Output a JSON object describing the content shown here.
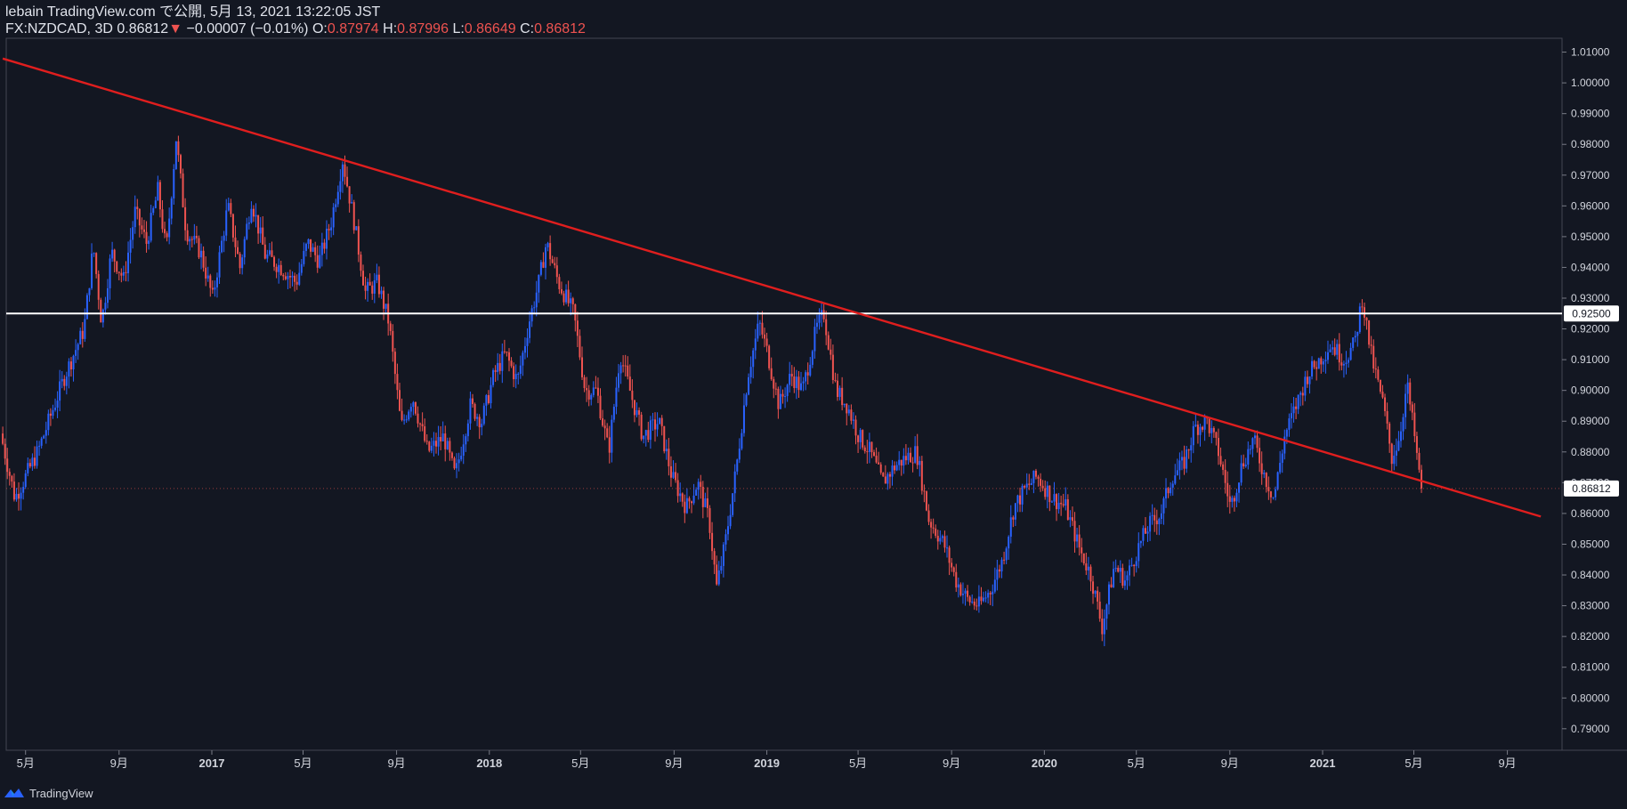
{
  "header": {
    "published": "lebain TradingView.com で公開, 5月 13, 2021 13:22:05 JST",
    "symbol": "FX:NZDCAD, 3D",
    "last": "0.86812",
    "arrow": "▼",
    "change": "−0.00007 (−0.01%)",
    "o_label": "O:",
    "o_value": "0.87974",
    "h_label": "H:",
    "h_value": "0.87996",
    "l_label": "L:",
    "l_value": "0.86649",
    "c_label": "C:",
    "c_value": "0.86812"
  },
  "footer": {
    "brand": "TradingView",
    "logo_icon": "tradingview-logo-icon"
  },
  "colors": {
    "background": "#131722",
    "up": "#2962ff",
    "down": "#ef5350",
    "trendline": "#e01e1e",
    "level": "#ffffff",
    "axis_text": "#d1d4dc"
  },
  "chart_data": {
    "type": "candlestick",
    "symbol": "FX:NZDCAD",
    "timeframe": "3D",
    "ylim": [
      0.783,
      1.0145
    ],
    "y_ticks": [
      "1.01000",
      "1.00000",
      "0.99000",
      "0.98000",
      "0.97000",
      "0.96000",
      "0.95000",
      "0.94000",
      "0.93000",
      "0.92000",
      "0.91000",
      "0.90000",
      "0.89000",
      "0.88000",
      "0.87000",
      "0.86000",
      "0.85000",
      "0.84000",
      "0.83000",
      "0.82000",
      "0.81000",
      "0.80000",
      "0.79000"
    ],
    "x_ticks": [
      {
        "label": "5月",
        "date": "2016-05-01"
      },
      {
        "label": "9月",
        "date": "2016-09-01"
      },
      {
        "label": "2017",
        "date": "2017-01-01"
      },
      {
        "label": "5月",
        "date": "2017-05-01"
      },
      {
        "label": "9月",
        "date": "2017-09-01"
      },
      {
        "label": "2018",
        "date": "2018-01-01"
      },
      {
        "label": "5月",
        "date": "2018-05-01"
      },
      {
        "label": "9月",
        "date": "2018-09-01"
      },
      {
        "label": "2019",
        "date": "2019-01-01"
      },
      {
        "label": "5月",
        "date": "2019-05-01"
      },
      {
        "label": "9月",
        "date": "2019-09-01"
      },
      {
        "label": "2020",
        "date": "2020-01-01"
      },
      {
        "label": "5月",
        "date": "2020-05-01"
      },
      {
        "label": "9月",
        "date": "2020-09-01"
      },
      {
        "label": "2021",
        "date": "2021-01-01"
      },
      {
        "label": "5月",
        "date": "2021-05-01"
      },
      {
        "label": "9月",
        "date": "2021-09-01"
      }
    ],
    "price_path": [
      [
        "2016-04-01",
        0.886
      ],
      [
        "2016-04-20",
        0.865
      ],
      [
        "2016-05-20",
        0.88
      ],
      [
        "2016-06-25",
        0.905
      ],
      [
        "2016-07-20",
        0.92
      ],
      [
        "2016-08-01",
        0.947
      ],
      [
        "2016-08-12",
        0.922
      ],
      [
        "2016-08-25",
        0.945
      ],
      [
        "2016-09-10",
        0.936
      ],
      [
        "2016-09-25",
        0.958
      ],
      [
        "2016-10-10",
        0.948
      ],
      [
        "2016-10-25",
        0.965
      ],
      [
        "2016-11-05",
        0.945
      ],
      [
        "2016-11-18",
        0.982
      ],
      [
        "2016-12-01",
        0.952
      ],
      [
        "2016-12-20",
        0.945
      ],
      [
        "2017-01-05",
        0.93
      ],
      [
        "2017-01-25",
        0.96
      ],
      [
        "2017-02-10",
        0.94
      ],
      [
        "2017-02-25",
        0.962
      ],
      [
        "2017-03-15",
        0.944
      ],
      [
        "2017-04-05",
        0.94
      ],
      [
        "2017-04-25",
        0.935
      ],
      [
        "2017-05-10",
        0.948
      ],
      [
        "2017-05-25",
        0.942
      ],
      [
        "2017-06-10",
        0.955
      ],
      [
        "2017-06-25",
        0.975
      ],
      [
        "2017-07-10",
        0.955
      ],
      [
        "2017-07-25",
        0.932
      ],
      [
        "2017-08-10",
        0.935
      ],
      [
        "2017-08-25",
        0.922
      ],
      [
        "2017-09-10",
        0.888
      ],
      [
        "2017-09-25",
        0.898
      ],
      [
        "2017-10-15",
        0.88
      ],
      [
        "2017-11-05",
        0.885
      ],
      [
        "2017-11-20",
        0.872
      ],
      [
        "2017-12-10",
        0.895
      ],
      [
        "2017-12-25",
        0.89
      ],
      [
        "2018-01-10",
        0.905
      ],
      [
        "2018-01-25",
        0.912
      ],
      [
        "2018-02-10",
        0.903
      ],
      [
        "2018-02-25",
        0.922
      ],
      [
        "2018-03-10",
        0.935
      ],
      [
        "2018-03-20",
        0.948
      ],
      [
        "2018-04-05",
        0.935
      ],
      [
        "2018-04-25",
        0.925
      ],
      [
        "2018-05-10",
        0.9
      ],
      [
        "2018-05-25",
        0.9
      ],
      [
        "2018-06-10",
        0.88
      ],
      [
        "2018-06-25",
        0.912
      ],
      [
        "2018-07-10",
        0.898
      ],
      [
        "2018-07-25",
        0.885
      ],
      [
        "2018-08-15",
        0.89
      ],
      [
        "2018-09-01",
        0.872
      ],
      [
        "2018-09-20",
        0.862
      ],
      [
        "2018-10-05",
        0.87
      ],
      [
        "2018-10-20",
        0.858
      ],
      [
        "2018-10-30",
        0.836
      ],
      [
        "2018-11-10",
        0.85
      ],
      [
        "2018-11-25",
        0.875
      ],
      [
        "2018-12-10",
        0.905
      ],
      [
        "2018-12-25",
        0.922
      ],
      [
        "2019-01-05",
        0.912
      ],
      [
        "2019-01-20",
        0.895
      ],
      [
        "2019-02-05",
        0.905
      ],
      [
        "2019-02-20",
        0.9
      ],
      [
        "2019-03-10",
        0.92
      ],
      [
        "2019-03-20",
        0.925
      ],
      [
        "2019-04-05",
        0.9
      ],
      [
        "2019-04-20",
        0.895
      ],
      [
        "2019-05-05",
        0.885
      ],
      [
        "2019-05-20",
        0.88
      ],
      [
        "2019-06-05",
        0.87
      ],
      [
        "2019-06-20",
        0.875
      ],
      [
        "2019-07-05",
        0.878
      ],
      [
        "2019-07-20",
        0.88
      ],
      [
        "2019-08-05",
        0.858
      ],
      [
        "2019-08-25",
        0.85
      ],
      [
        "2019-09-10",
        0.838
      ],
      [
        "2019-09-25",
        0.832
      ],
      [
        "2019-10-10",
        0.83
      ],
      [
        "2019-10-25",
        0.835
      ],
      [
        "2019-11-10",
        0.845
      ],
      [
        "2019-11-25",
        0.862
      ],
      [
        "2019-12-10",
        0.868
      ],
      [
        "2019-12-25",
        0.872
      ],
      [
        "2020-01-15",
        0.865
      ],
      [
        "2020-02-01",
        0.862
      ],
      [
        "2020-02-20",
        0.848
      ],
      [
        "2020-03-05",
        0.84
      ],
      [
        "2020-03-20",
        0.823
      ],
      [
        "2020-04-05",
        0.843
      ],
      [
        "2020-04-20",
        0.838
      ],
      [
        "2020-05-05",
        0.848
      ],
      [
        "2020-05-20",
        0.856
      ],
      [
        "2020-06-05",
        0.86
      ],
      [
        "2020-06-20",
        0.872
      ],
      [
        "2020-07-05",
        0.876
      ],
      [
        "2020-07-20",
        0.888
      ],
      [
        "2020-08-05",
        0.89
      ],
      [
        "2020-08-20",
        0.88
      ],
      [
        "2020-09-05",
        0.862
      ],
      [
        "2020-09-20",
        0.876
      ],
      [
        "2020-10-05",
        0.884
      ],
      [
        "2020-10-20",
        0.872
      ],
      [
        "2020-11-01",
        0.865
      ],
      [
        "2020-11-15",
        0.885
      ],
      [
        "2020-11-30",
        0.895
      ],
      [
        "2020-12-15",
        0.905
      ],
      [
        "2020-12-31",
        0.91
      ],
      [
        "2021-01-15",
        0.915
      ],
      [
        "2021-02-01",
        0.91
      ],
      [
        "2021-02-15",
        0.915
      ],
      [
        "2021-02-25",
        0.93
      ],
      [
        "2021-03-10",
        0.91
      ],
      [
        "2021-03-25",
        0.895
      ],
      [
        "2021-04-05",
        0.878
      ],
      [
        "2021-04-15",
        0.885
      ],
      [
        "2021-04-25",
        0.902
      ],
      [
        "2021-05-05",
        0.885
      ],
      [
        "2021-05-13",
        0.868
      ]
    ],
    "current_price": 0.86812,
    "current_price_label": "0.86812",
    "horizontal_line": {
      "price": 0.925,
      "label": "0.92500"
    },
    "trendline": {
      "start": [
        "2016-04-01",
        1.0079
      ],
      "end": [
        "2021-10-15",
        0.859
      ]
    }
  }
}
